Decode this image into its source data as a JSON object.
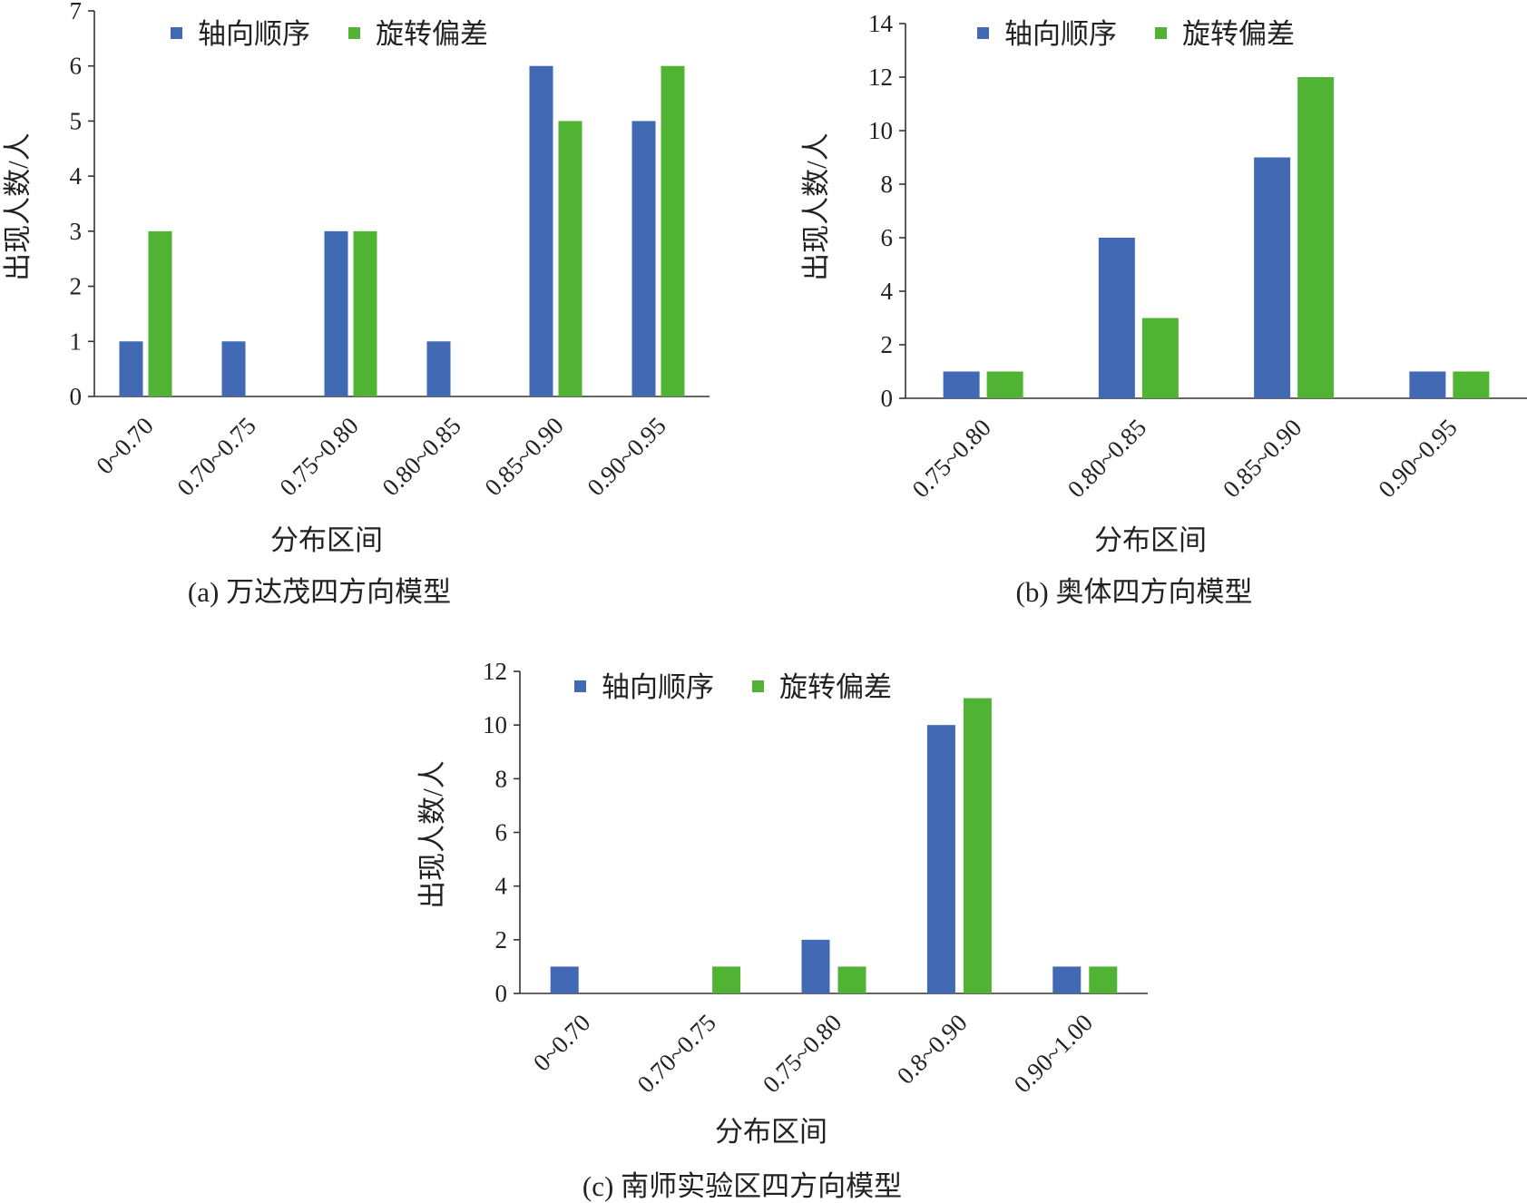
{
  "chart_data": [
    {
      "type": "bar",
      "caption": "(a) 万达茂四方向模型",
      "xlabel": "分布区间",
      "ylabel": "出现人数/人",
      "ylim": [
        0,
        7
      ],
      "yticks": [
        "0",
        "1",
        "2",
        "3",
        "4",
        "5",
        "6",
        "7"
      ],
      "categories": [
        "0~0.70",
        "0.70~0.75",
        "0.75~0.80",
        "0.80~0.85",
        "0.85~0.90",
        "0.90~0.95"
      ],
      "series": [
        {
          "name": "轴向顺序",
          "color": "#4169b4",
          "values": [
            1,
            1,
            3,
            1,
            6,
            5
          ]
        },
        {
          "name": "旋转偏差",
          "color": "#51b334",
          "values": [
            3,
            0,
            3,
            0,
            5,
            6
          ]
        }
      ],
      "legend_position": "top"
    },
    {
      "type": "bar",
      "caption": "(b) 奥体四方向模型",
      "xlabel": "分布区间",
      "ylabel": "出现人数/人",
      "ylim": [
        0,
        14
      ],
      "yticks": [
        "0",
        "2",
        "4",
        "6",
        "8",
        "10",
        "12",
        "14"
      ],
      "categories": [
        "0.75~0.80",
        "0.80~0.85",
        "0.85~0.90",
        "0.90~0.95"
      ],
      "series": [
        {
          "name": "轴向顺序",
          "color": "#4169b4",
          "values": [
            1,
            6,
            9,
            1
          ]
        },
        {
          "name": "旋转偏差",
          "color": "#51b334",
          "values": [
            1,
            3,
            12,
            1
          ]
        }
      ],
      "legend_position": "top"
    },
    {
      "type": "bar",
      "caption": "(c) 南师实验区四方向模型",
      "xlabel": "分布区间",
      "ylabel": "出现人数/人",
      "ylim": [
        0,
        12
      ],
      "yticks": [
        "0",
        "2",
        "4",
        "6",
        "8",
        "10",
        "12"
      ],
      "categories": [
        "0~0.70",
        "0.70~0.75",
        "0.75~0.80",
        "0.8~0.90",
        "0.90~1.00"
      ],
      "series": [
        {
          "name": "轴向顺序",
          "color": "#4169b4",
          "values": [
            1,
            0,
            2,
            10,
            1
          ]
        },
        {
          "name": "旋转偏差",
          "color": "#51b334",
          "values": [
            0,
            1,
            1,
            11,
            1
          ]
        }
      ],
      "legend_position": "top"
    }
  ]
}
